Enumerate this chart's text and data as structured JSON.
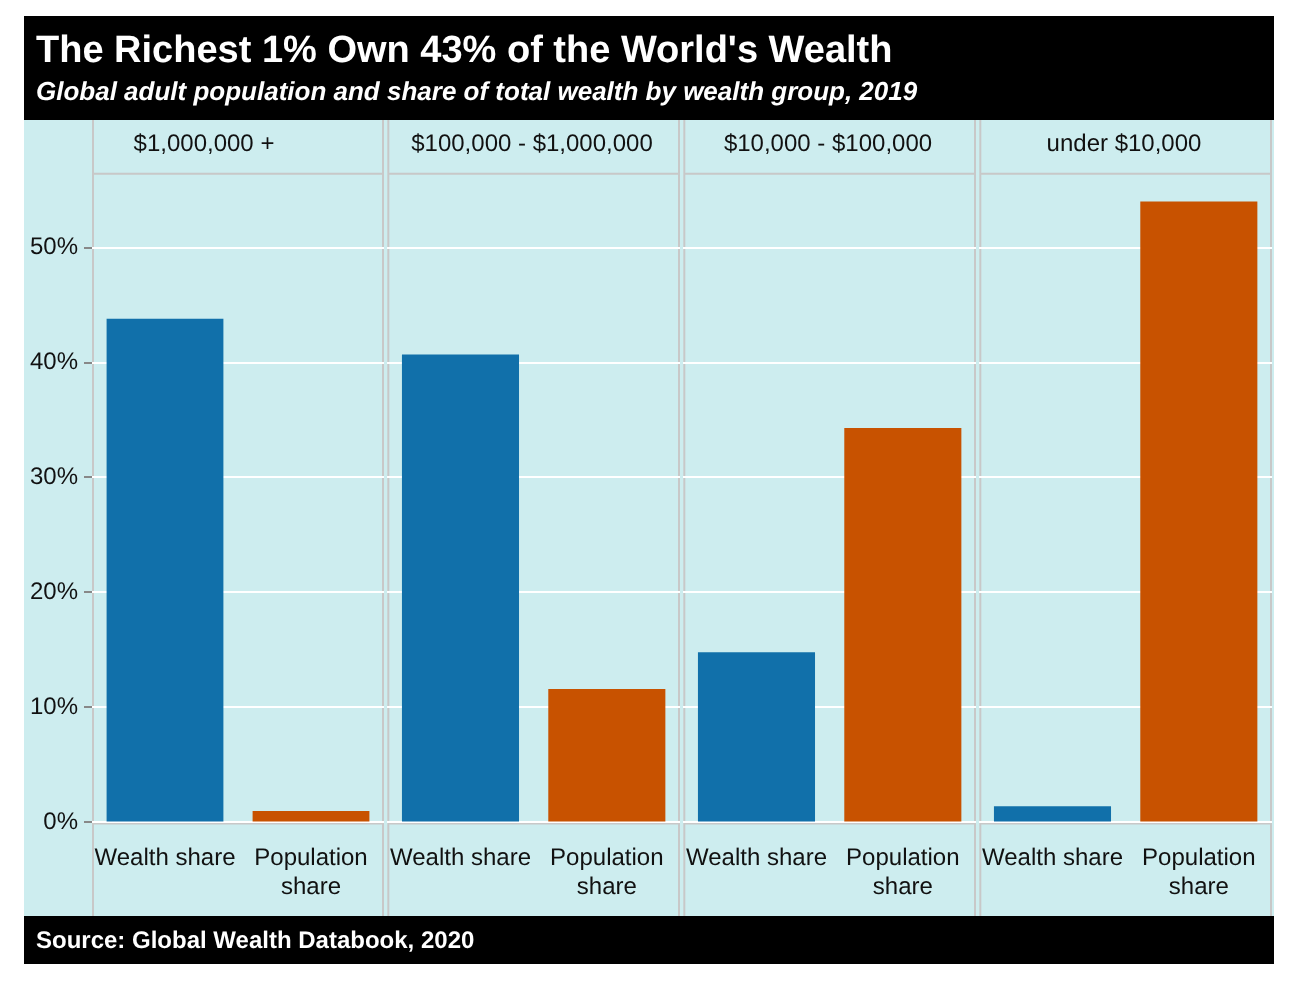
{
  "chart_data": [
    {
      "type": "other",
      "title": "The Richest 1% Own 43% of the World's Wealth",
      "subtitle": "Global adult population and share of total wealth by wealth group, 2019"
    },
    {
      "type": "bar",
      "title": "$1,000,000 +",
      "categories": [
        "Wealth share",
        "Population share"
      ],
      "values": [
        43.8,
        1.0
      ],
      "colors": [
        "#1170aa",
        "#c85200"
      ],
      "ylim": [
        0,
        56.5
      ],
      "yticks": [
        {
          "value": 0,
          "label": "0%"
        },
        {
          "value": 10,
          "label": "10%"
        },
        {
          "value": 20,
          "label": "20%"
        },
        {
          "value": 30,
          "label": "30%"
        },
        {
          "value": 40,
          "label": "40%"
        },
        {
          "value": 50,
          "label": "50%"
        }
      ],
      "grid": "y"
    },
    {
      "type": "bar",
      "title": "$100,000 - $1,000,000",
      "categories": [
        "Wealth share",
        "Population share"
      ],
      "values": [
        40.7,
        11.6
      ],
      "colors": [
        "#1170aa",
        "#c85200"
      ],
      "ylim": [
        0,
        56.5
      ],
      "yticks": [
        0,
        10,
        20,
        30,
        40,
        50
      ],
      "grid": "y",
      "tick_labels": "x"
    },
    {
      "type": "bar",
      "title": "$10,000 - $100,000",
      "categories": [
        "Wealth share",
        "Population share"
      ],
      "values": [
        14.8,
        34.3
      ],
      "colors": [
        "#1170aa",
        "#c85200"
      ],
      "ylim": [
        0,
        56.5
      ],
      "yticks": [
        0,
        10,
        20,
        30,
        40,
        50
      ],
      "grid": "y",
      "tick_labels": "x"
    },
    {
      "type": "bar",
      "title": "under $10,000",
      "categories": [
        "Wealth share",
        "Population share"
      ],
      "values": [
        1.4,
        54.0
      ],
      "colors": [
        "#1170aa",
        "#c85200"
      ],
      "ylim": [
        0,
        56.5
      ],
      "yticks": [
        0,
        10,
        20,
        30,
        40,
        50
      ],
      "grid": "y",
      "tick_labels": "x"
    },
    {
      "type": "other",
      "annotations": [
        "Source: Global Wealth Databook, 2020"
      ]
    }
  ]
}
